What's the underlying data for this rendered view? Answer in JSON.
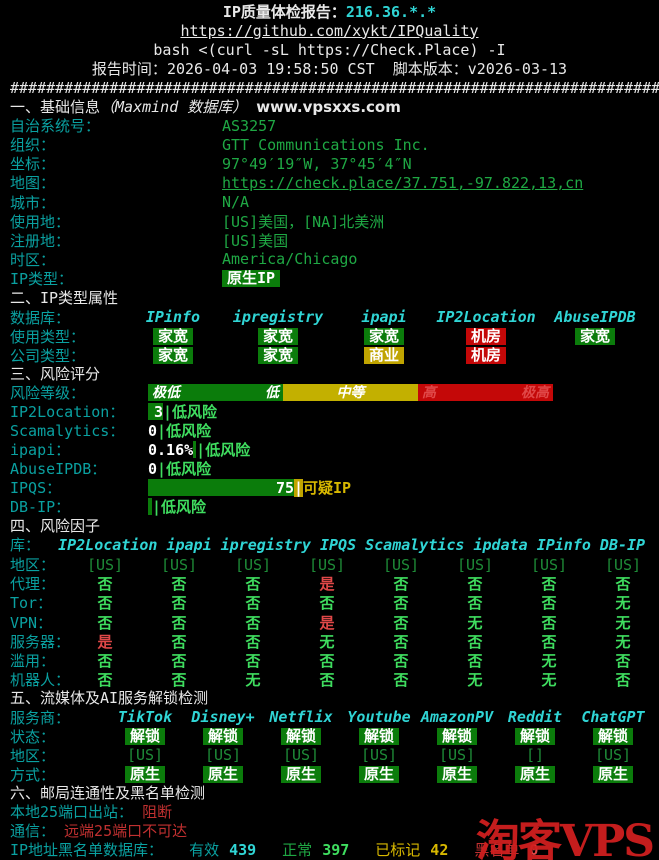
{
  "colors": {
    "bg": "#000000",
    "white": "#e8e8e8",
    "teal": "#0aa0a0",
    "cyan_bright": "#30d5d5",
    "green": "#1fa844",
    "green_bright": "#3fdd5f",
    "green_dim": "#1e8c38",
    "badge_green": "#0b7c0b",
    "badge_yellow": "#c0a400",
    "badge_red": "#c40808",
    "gauge_yellow": "#c3b000",
    "yellow": "#d8b800",
    "red": "#e04848",
    "red_dark": "#c03030",
    "watermark_red": "#cf1f1f"
  },
  "header": {
    "title_label": "IP质量体检报告：",
    "ip": "216.36.*.*",
    "repo_url": "https://github.com/xykt/IPQuality",
    "command": "bash <(curl -sL https://Check.Place) -I",
    "time_label": "报告时间：",
    "time": "2026-04-03 19:58:50 CST",
    "version_label": "脚本版本：",
    "version": "v2026-03-13",
    "separator": "####################################################################################"
  },
  "basic": {
    "heading": "一、基础信息",
    "heading_note": "（Maxmind 数据库）",
    "watermark": "www.vpsxxs.com",
    "rows": [
      {
        "label": "自治系统号：",
        "value": "AS3257"
      },
      {
        "label": "组织：",
        "value": "GTT Communications Inc."
      },
      {
        "label": "坐标：",
        "value": "97°49′19″W, 37°45′4″N"
      },
      {
        "label": "地图：",
        "value": "https://check.place/37.751,-97.822,13,cn"
      },
      {
        "label": "城市：",
        "value": "N/A"
      },
      {
        "label": "使用地：",
        "value": "[US]美国，[NA]北美洲"
      },
      {
        "label": "注册地：",
        "value": "[US]美国"
      },
      {
        "label": "时区：",
        "value": "America/Chicago"
      },
      {
        "label": "IP类型：",
        "value": "原生IP"
      }
    ]
  },
  "type_attr": {
    "heading": "二、IP类型属性",
    "db_label": "数据库：",
    "headers": [
      {
        "t": "IPinfo",
        "c": "ci"
      },
      {
        "t": "ipregistry",
        "c": "ci"
      },
      {
        "t": "ipapi",
        "c": "ci"
      },
      {
        "t": "IP2Location",
        "c": "ci"
      },
      {
        "t": "AbuseIPDB",
        "c": "ci"
      }
    ],
    "usage_label": "使用类型：",
    "usage": [
      {
        "t": "家宽",
        "c": "bg"
      },
      {
        "t": "家宽",
        "c": "bg"
      },
      {
        "t": "家宽",
        "c": "bg"
      },
      {
        "t": "机房",
        "c": "br"
      },
      {
        "t": "家宽",
        "c": "bg"
      }
    ],
    "company_label": "公司类型：",
    "company": [
      {
        "t": "家宽",
        "c": "bg"
      },
      {
        "t": "家宽",
        "c": "bg"
      },
      {
        "t": "商业",
        "c": "by"
      },
      {
        "t": "机房",
        "c": "br"
      },
      {
        "t": "",
        "c": "empty"
      }
    ]
  },
  "risk_score": {
    "heading": "三、风险评分",
    "gauge_label": "风险等级：",
    "gauge_labels": [
      "极低",
      "低",
      "中等",
      "高",
      "极高"
    ],
    "rows": [
      {
        "label": "IP2Location：",
        "score": "3",
        "bar": "width:15px",
        "sep": "|",
        "verdict": "低风险"
      },
      {
        "label": "Scamalytics：",
        "score": "0",
        "bar": "width:0px",
        "sep": "|",
        "verdict": "低风险"
      },
      {
        "label": "ipapi：",
        "score": "0.16%",
        "bar": "width:3px",
        "sep": "|",
        "verdict": "低风险"
      },
      {
        "label": "AbuseIPDB：",
        "score": "0",
        "bar": "width:0px",
        "sep": "|",
        "verdict": "低风险"
      },
      {
        "label": "IPQS：",
        "score": "75",
        "bar": "width:146px",
        "sep": "|",
        "verdict": "可疑IP"
      },
      {
        "label": "DB-IP：",
        "score": "",
        "bar": "width:4px",
        "sep": "|",
        "verdict": "低风险"
      }
    ]
  },
  "risk_factors": {
    "heading": "四、风险因子",
    "db_label": "库：",
    "db_names": "IP2Location ipapi ipregistry IPQS Scamalytics ipdata IPinfo DB-IP",
    "rows": [
      {
        "label": "地区：",
        "values": [
          {
            "t": "[US]",
            "c": "gd"
          },
          {
            "t": "[US]",
            "c": "gd"
          },
          {
            "t": "[US]",
            "c": "gd"
          },
          {
            "t": "[US]",
            "c": "gd"
          },
          {
            "t": "[US]",
            "c": "gd"
          },
          {
            "t": "[US]",
            "c": "gd"
          },
          {
            "t": "[US]",
            "c": "gd"
          },
          {
            "t": "[US]",
            "c": "gd"
          }
        ]
      },
      {
        "label": "代理：",
        "values": [
          {
            "t": "否",
            "c": "g"
          },
          {
            "t": "否",
            "c": "g"
          },
          {
            "t": "否",
            "c": "g"
          },
          {
            "t": "是",
            "c": "r"
          },
          {
            "t": "否",
            "c": "g"
          },
          {
            "t": "否",
            "c": "g"
          },
          {
            "t": "否",
            "c": "g"
          },
          {
            "t": "否",
            "c": "g"
          }
        ]
      },
      {
        "label": "Tor：",
        "values": [
          {
            "t": "否",
            "c": "g"
          },
          {
            "t": "否",
            "c": "g"
          },
          {
            "t": "否",
            "c": "g"
          },
          {
            "t": "否",
            "c": "g"
          },
          {
            "t": "否",
            "c": "g"
          },
          {
            "t": "否",
            "c": "g"
          },
          {
            "t": "否",
            "c": "g"
          },
          {
            "t": "无",
            "c": "g"
          }
        ]
      },
      {
        "label": "VPN：",
        "values": [
          {
            "t": "否",
            "c": "g"
          },
          {
            "t": "否",
            "c": "g"
          },
          {
            "t": "否",
            "c": "g"
          },
          {
            "t": "是",
            "c": "r"
          },
          {
            "t": "否",
            "c": "g"
          },
          {
            "t": "无",
            "c": "g"
          },
          {
            "t": "否",
            "c": "g"
          },
          {
            "t": "无",
            "c": "g"
          }
        ]
      },
      {
        "label": "服务器：",
        "values": [
          {
            "t": "是",
            "c": "r"
          },
          {
            "t": "否",
            "c": "g"
          },
          {
            "t": "否",
            "c": "g"
          },
          {
            "t": "无",
            "c": "g"
          },
          {
            "t": "否",
            "c": "g"
          },
          {
            "t": "否",
            "c": "g"
          },
          {
            "t": "否",
            "c": "g"
          },
          {
            "t": "无",
            "c": "g"
          }
        ]
      },
      {
        "label": "滥用：",
        "values": [
          {
            "t": "否",
            "c": "g"
          },
          {
            "t": "否",
            "c": "g"
          },
          {
            "t": "否",
            "c": "g"
          },
          {
            "t": "否",
            "c": "g"
          },
          {
            "t": "否",
            "c": "g"
          },
          {
            "t": "否",
            "c": "g"
          },
          {
            "t": "无",
            "c": "g"
          },
          {
            "t": "否",
            "c": "g"
          }
        ]
      },
      {
        "label": "机器人：",
        "values": [
          {
            "t": "否",
            "c": "g"
          },
          {
            "t": "否",
            "c": "g"
          },
          {
            "t": "无",
            "c": "g"
          },
          {
            "t": "否",
            "c": "g"
          },
          {
            "t": "否",
            "c": "g"
          },
          {
            "t": "无",
            "c": "g"
          },
          {
            "t": "无",
            "c": "g"
          },
          {
            "t": "否",
            "c": "g"
          }
        ]
      }
    ]
  },
  "streaming": {
    "heading": "五、流媒体及AI服务解锁检测",
    "provider_label": "服务商：",
    "providers": [
      {
        "t": "TikTok",
        "c": "ci"
      },
      {
        "t": "Disney+",
        "c": "ci"
      },
      {
        "t": "Netflix",
        "c": "ci"
      },
      {
        "t": "Youtube",
        "c": "ci"
      },
      {
        "t": "AmazonPV",
        "c": "ci"
      },
      {
        "t": "Reddit",
        "c": "ci"
      },
      {
        "t": "ChatGPT",
        "c": "ci"
      }
    ],
    "status_label": "状态：",
    "status": [
      {
        "t": "解锁",
        "c": "bg"
      },
      {
        "t": "解锁",
        "c": "bg"
      },
      {
        "t": "解锁",
        "c": "bg"
      },
      {
        "t": "解锁",
        "c": "bg"
      },
      {
        "t": "解锁",
        "c": "bg"
      },
      {
        "t": "解锁",
        "c": "bg"
      },
      {
        "t": "解锁",
        "c": "bg"
      }
    ],
    "region_label": "地区：",
    "regions": [
      {
        "t": "[US]",
        "c": "gd"
      },
      {
        "t": "[US]",
        "c": "gd"
      },
      {
        "t": "[US]",
        "c": "gd"
      },
      {
        "t": "[US]",
        "c": "gd"
      },
      {
        "t": "[US]",
        "c": "gd"
      },
      {
        "t": "[]",
        "c": "gd"
      },
      {
        "t": "[US]",
        "c": "gd"
      }
    ],
    "method_label": "方式：",
    "methods": [
      {
        "t": "原生",
        "c": "bg"
      },
      {
        "t": "原生",
        "c": "bg"
      },
      {
        "t": "原生",
        "c": "bg"
      },
      {
        "t": "原生",
        "c": "bg"
      },
      {
        "t": "原生",
        "c": "bg"
      },
      {
        "t": "原生",
        "c": "bg"
      },
      {
        "t": "原生",
        "c": "bg"
      }
    ]
  },
  "mail": {
    "heading": "六、邮局连通性及黑名单检测",
    "port_label": "本地25端口出站：",
    "port_value": "阻断",
    "comm_label": "通信：",
    "comm_value": "远端25端口不可达",
    "blacklist_label": "IP地址黑名单数据库：",
    "stats": [
      {
        "k": "有效",
        "v": "439"
      },
      {
        "k": "正常",
        "v": "397"
      },
      {
        "k": "已标记",
        "v": "42"
      },
      {
        "k": "黑名单",
        "v": "0"
      }
    ]
  },
  "watermark": {
    "text": "淘客VPS"
  }
}
